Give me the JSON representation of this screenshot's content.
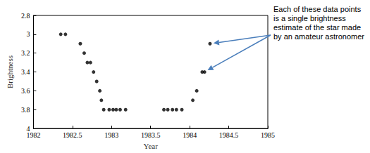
{
  "chart_data": {
    "type": "scatter",
    "x": [
      1982.35,
      1982.41,
      1982.6,
      1982.65,
      1982.69,
      1982.73,
      1982.77,
      1982.81,
      1982.85,
      1982.87,
      1982.9,
      1982.97,
      1983.02,
      1983.06,
      1983.11,
      1983.18,
      1983.67,
      1983.72,
      1983.78,
      1983.83,
      1983.9,
      1984.04,
      1984.09,
      1984.16,
      1984.19,
      1984.26
    ],
    "values": [
      3.0,
      3.0,
      3.1,
      3.2,
      3.3,
      3.3,
      3.4,
      3.5,
      3.6,
      3.7,
      3.8,
      3.8,
      3.8,
      3.8,
      3.8,
      3.8,
      3.8,
      3.8,
      3.8,
      3.8,
      3.8,
      3.7,
      3.6,
      3.4,
      3.4,
      3.1
    ],
    "color": "#000000",
    "marker": "circle",
    "xlabel": "Year",
    "ylabel": "Brightness",
    "xlim": [
      1982,
      1985
    ],
    "xticks": [
      1982,
      1982.5,
      1983,
      1983.5,
      1984,
      1984.5,
      1985
    ],
    "ylim": [
      4,
      2.8
    ],
    "yticks": [
      2.8,
      3,
      3.2,
      3.4,
      3.6,
      3.8,
      4
    ],
    "grid": false,
    "annotations": [
      {
        "text": "Each of these data points is a single brightness estimate of the star made by an amateur astronomer"
      }
    ]
  }
}
